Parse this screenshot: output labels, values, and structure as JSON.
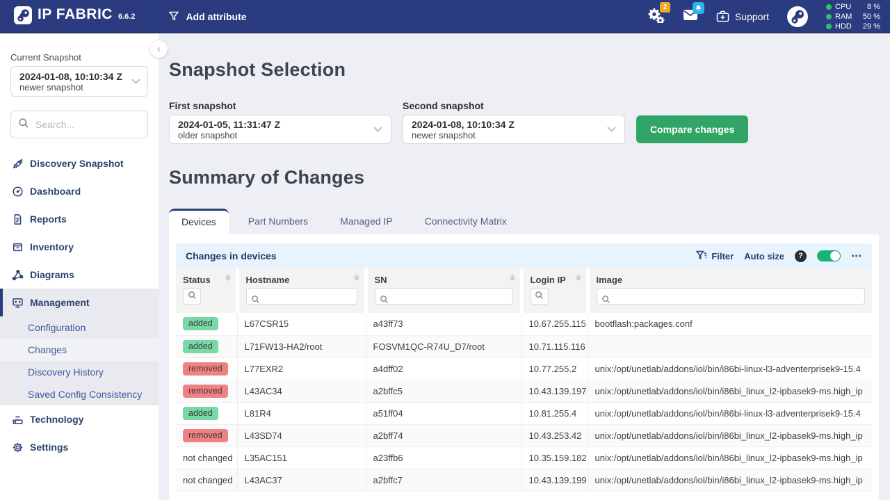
{
  "navbar": {
    "brand": "IP FABRIC",
    "version": "6.6.2",
    "add_attribute_label": "Add attribute",
    "settings_badge": "2",
    "support_label": "Support",
    "stats": [
      {
        "label": "CPU",
        "value": "8 %"
      },
      {
        "label": "RAM",
        "value": "50 %"
      },
      {
        "label": "HDD",
        "value": "29 %"
      }
    ]
  },
  "sidebar": {
    "current_snapshot_label": "Current Snapshot",
    "current_snapshot_value": "2024-01-08, 10:10:34 Z",
    "current_snapshot_sub": "newer snapshot",
    "search_placeholder": "Search...",
    "nav": [
      {
        "label": "Discovery Snapshot",
        "icon": "rocket-icon"
      },
      {
        "label": "Dashboard",
        "icon": "gauge-icon"
      },
      {
        "label": "Reports",
        "icon": "document-icon"
      },
      {
        "label": "Inventory",
        "icon": "box-icon"
      },
      {
        "label": "Diagrams",
        "icon": "network-icon"
      },
      {
        "label": "Management",
        "icon": "monitor-icon",
        "active": true,
        "children": [
          {
            "label": "Configuration"
          },
          {
            "label": "Changes",
            "active": true
          },
          {
            "label": "Discovery History"
          },
          {
            "label": "Saved Config Consistency"
          }
        ]
      },
      {
        "label": "Technology",
        "icon": "device-icon"
      },
      {
        "label": "Settings",
        "icon": "gear-icon"
      }
    ]
  },
  "main": {
    "title1": "Snapshot Selection",
    "first_snapshot": {
      "label": "First snapshot",
      "value": "2024-01-05, 11:31:47 Z",
      "sub": "older snapshot"
    },
    "second_snapshot": {
      "label": "Second snapshot",
      "value": "2024-01-08, 10:10:34 Z",
      "sub": "newer snapshot"
    },
    "compare_label": "Compare changes",
    "title2": "Summary of Changes",
    "tabs": [
      "Devices",
      "Part Numbers",
      "Managed IP",
      "Connectivity Matrix"
    ],
    "active_tab": "Devices"
  },
  "table": {
    "title": "Changes in devices",
    "toolbar": {
      "filter_label": "Filter",
      "autosize_label": "Auto size",
      "help": "?",
      "more": "⋯"
    },
    "columns": [
      {
        "label": "Status",
        "sortable": true,
        "filter": "button"
      },
      {
        "label": "Hostname",
        "sortable": true,
        "filter": "input"
      },
      {
        "label": "SN",
        "sortable": true,
        "filter": "input"
      },
      {
        "label": "Login IP",
        "sortable": true,
        "filter": "button"
      },
      {
        "label": "Image",
        "sortable": false,
        "filter": "input"
      }
    ],
    "rows": [
      {
        "status": "added",
        "status_type": "added",
        "hostname": "L67CSR15",
        "sn": "a43ff73",
        "login_ip": "10.67.255.115",
        "image": "bootflash:packages.conf"
      },
      {
        "status": "added",
        "status_type": "added",
        "hostname": "L71FW13-HA2/root",
        "sn": "FOSVM1QC-R74U_D7/root",
        "login_ip": "10.71.115.116",
        "image": ""
      },
      {
        "status": "removed",
        "status_type": "removed",
        "hostname": "L77EXR2",
        "sn": "a4dff02",
        "login_ip": "10.77.255.2",
        "image": "unix:/opt/unetlab/addons/iol/bin/i86bi-linux-l3-adventerprisek9-15.4"
      },
      {
        "status": "removed",
        "status_type": "removed",
        "hostname": "L43AC34",
        "sn": "a2bffc5",
        "login_ip": "10.43.139.197",
        "image": "unix:/opt/unetlab/addons/iol/bin/i86bi_linux_l2-ipbasek9-ms.high_ip"
      },
      {
        "status": "added",
        "status_type": "added",
        "hostname": "L81R4",
        "sn": "a51ff04",
        "login_ip": "10.81.255.4",
        "image": "unix:/opt/unetlab/addons/iol/bin/i86bi-linux-l3-adventerprisek9-15.4"
      },
      {
        "status": "removed",
        "status_type": "removed",
        "hostname": "L43SD74",
        "sn": "a2bff74",
        "login_ip": "10.43.253.42",
        "image": "unix:/opt/unetlab/addons/iol/bin/i86bi_linux_l2-ipbasek9-ms.high_ip"
      },
      {
        "status": "not changed",
        "status_type": "none",
        "hostname": "L35AC151",
        "sn": "a23ffb6",
        "login_ip": "10.35.159.182",
        "image": "unix:/opt/unetlab/addons/iol/bin/i86bi_linux_l2-ipbasek9-ms.high_ip"
      },
      {
        "status": "not changed",
        "status_type": "none",
        "hostname": "L43AC37",
        "sn": "a2bffc7",
        "login_ip": "10.43.139.199",
        "image": "unix:/opt/unetlab/addons/iol/bin/i86bi_linux_l2-ipbasek9-ms.high_ip"
      }
    ]
  },
  "colors": {
    "navbar": "#2a3b7f",
    "accent_navy": "#2c3e78",
    "green_button": "#31a565",
    "toggle_on": "#19b274",
    "table_header_bar": "#e7f4fd",
    "badge_added": "#79d9a6",
    "badge_removed": "#f08181",
    "badge_orange": "#f5a623",
    "badge_blue": "#2fb1f0",
    "stat_dot": "#2fbf71"
  }
}
